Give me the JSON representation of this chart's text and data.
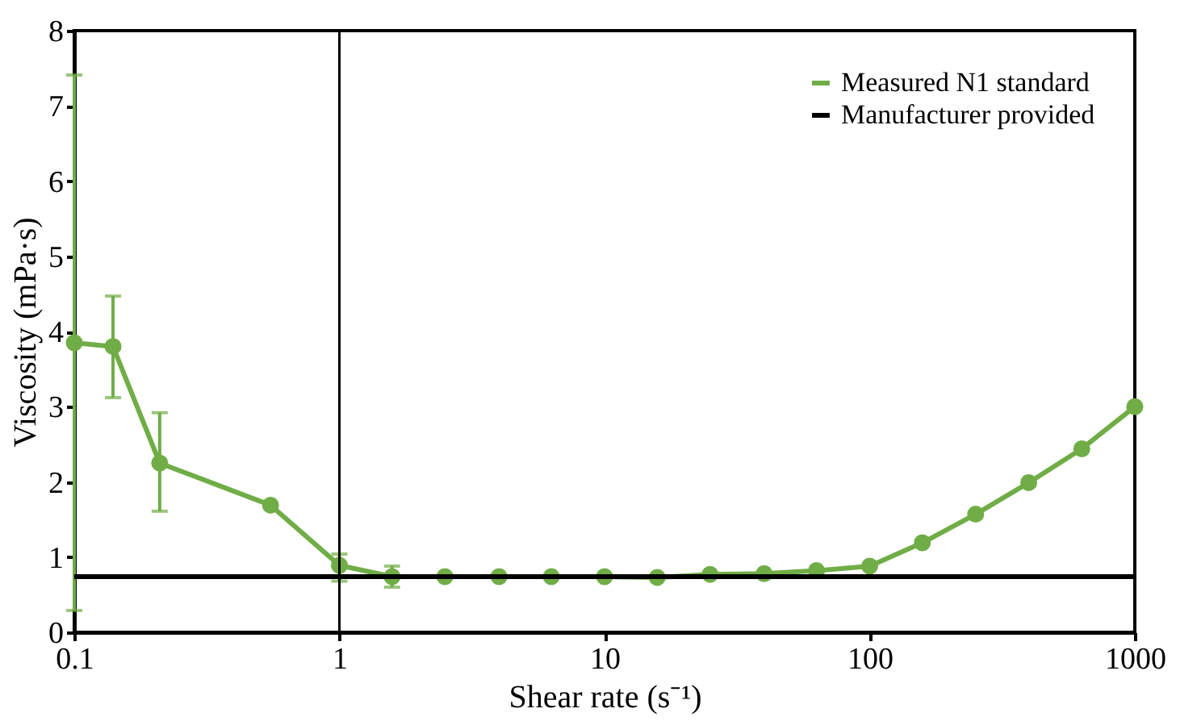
{
  "chart_data": {
    "type": "line",
    "xlabel": "Shear rate (s⁻¹)",
    "ylabel": "Viscosity (mPa·s)",
    "x": [
      0.1,
      0.14,
      0.21,
      0.55,
      1,
      1.58,
      2.5,
      4,
      6.3,
      10,
      15.8,
      25,
      40,
      63,
      100,
      158,
      251,
      398,
      631,
      1000
    ],
    "series": [
      {
        "name": "Measured N1 standard",
        "color": "#70ad47",
        "marker": "circle",
        "values": [
          3.85,
          3.8,
          2.25,
          1.69,
          0.89,
          0.74,
          0.74,
          0.74,
          0.74,
          0.74,
          0.73,
          0.77,
          0.78,
          0.82,
          0.88,
          1.19,
          1.57,
          1.99,
          2.44,
          3.0
        ],
        "errors": [
          [
            0.29,
            7.41
          ],
          [
            3.12,
            4.47
          ],
          [
            1.61,
            2.92
          ],
          null,
          [
            0.68,
            1.04
          ],
          [
            0.6,
            0.88
          ],
          null,
          null,
          null,
          null,
          null,
          null,
          null,
          null,
          null,
          null,
          null,
          null,
          null,
          null
        ]
      },
      {
        "name": "Manufacturer provided",
        "color": "#000000",
        "marker": "none",
        "x": [
          0.1,
          1000
        ],
        "values": [
          0.74,
          0.74
        ]
      }
    ],
    "log": "x",
    "xlim": [
      0.1,
      1000
    ],
    "xticks": [
      0.1,
      1,
      10,
      100,
      1000
    ],
    "ylim": [
      0,
      8
    ],
    "yticks": [
      0,
      1,
      2,
      3,
      4,
      5,
      6,
      7,
      8
    ],
    "ref_lines": [
      {
        "axis": "x",
        "value": 1,
        "color": "#000000"
      }
    ],
    "grid": false,
    "legend": "top right",
    "line_style": "solid"
  }
}
